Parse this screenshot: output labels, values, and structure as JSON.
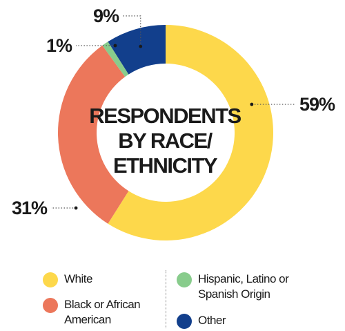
{
  "chart_data": {
    "type": "pie",
    "variant": "donut",
    "title_lines": [
      "RESPONDENTS",
      "BY RACE/",
      "ETHNICITY"
    ],
    "categories": [
      "White",
      "Black or African American",
      "Hispanic, Latino or Spanish Origin",
      "Other"
    ],
    "values": [
      59,
      31,
      1,
      9
    ],
    "value_labels": [
      "59%",
      "31%",
      "1%",
      "9%"
    ],
    "colors": [
      "#fdd84b",
      "#ec775b",
      "#88cc8c",
      "#123f8c"
    ],
    "legend_placement": "bottom"
  },
  "legend": {
    "items": [
      {
        "lines": [
          "White"
        ],
        "color": "#fdd84b",
        "icon": "yellow-circle"
      },
      {
        "lines": [
          "Black or African",
          "American"
        ],
        "color": "#ec775b",
        "icon": "orange-circle"
      },
      {
        "lines": [
          "Hispanic, Latino or",
          "Spanish Origin"
        ],
        "color": "#88cc8c",
        "icon": "green-circle"
      },
      {
        "lines": [
          "Other"
        ],
        "color": "#123f8c",
        "icon": "navy-circle"
      }
    ]
  }
}
